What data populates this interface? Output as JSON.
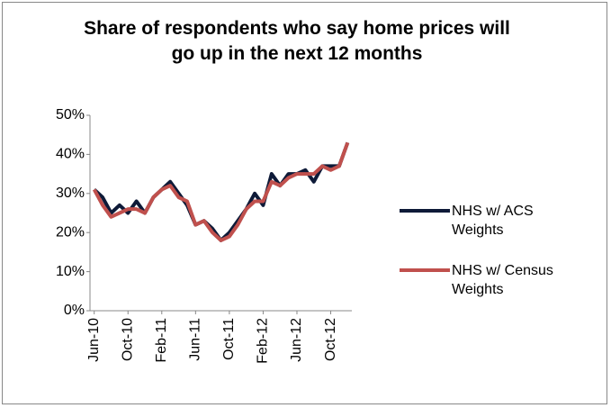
{
  "chart_data": {
    "type": "line",
    "title": "Share of respondents who say home prices will go up in the next 12 months",
    "categories": [
      "Jun-10",
      null,
      null,
      null,
      "Oct-10",
      null,
      null,
      null,
      "Feb-11",
      null,
      null,
      null,
      "Jun-11",
      null,
      null,
      null,
      "Oct-11",
      null,
      null,
      null,
      "Feb-12",
      null,
      null,
      null,
      "Jun-12",
      null,
      null,
      null,
      "Oct-12",
      null,
      null
    ],
    "series": [
      {
        "name": "NHS w/ ACS Weights",
        "color": "#0e1a38",
        "values": [
          31,
          29,
          25,
          27,
          25,
          28,
          25,
          29,
          31,
          33,
          30,
          27,
          22,
          23,
          21,
          18,
          20,
          23,
          26,
          30,
          27,
          35,
          32,
          35,
          35,
          36,
          33,
          37,
          37,
          37,
          43
        ]
      },
      {
        "name": "NHS w/ Census Weights",
        "color": "#c0504d",
        "values": [
          31,
          27,
          24,
          25,
          26,
          26,
          25,
          29,
          31,
          32,
          29,
          28,
          22,
          23,
          20,
          18,
          19,
          22,
          26,
          28,
          28,
          33,
          32,
          34,
          35,
          35,
          35,
          37,
          36,
          37,
          43
        ]
      }
    ],
    "ylim": [
      0,
      50
    ],
    "yticks": [
      {
        "value": 0,
        "label": "0%"
      },
      {
        "value": 10,
        "label": "10%"
      },
      {
        "value": 20,
        "label": "20%"
      },
      {
        "value": 30,
        "label": "30%"
      },
      {
        "value": 40,
        "label": "40%"
      },
      {
        "value": 50,
        "label": "50%"
      }
    ],
    "legend": "right"
  }
}
